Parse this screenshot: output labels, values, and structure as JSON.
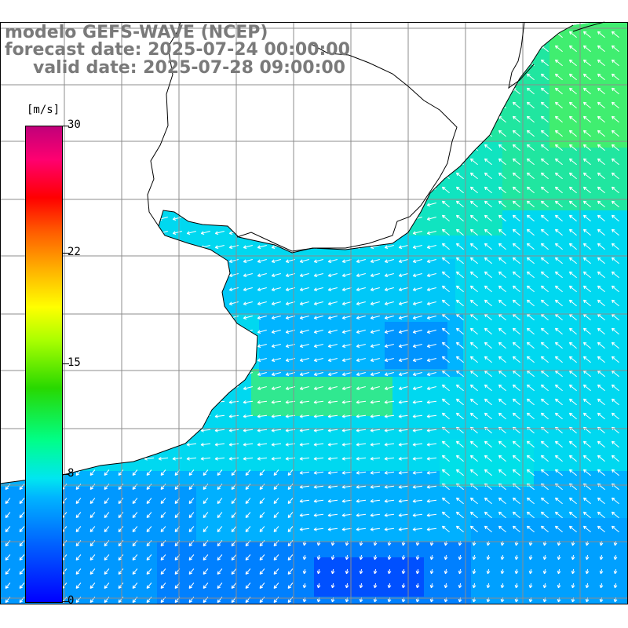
{
  "title": {
    "line1": "modelo GEFS-WAVE (NCEP)",
    "line2": "forecast date: 2025-07-24 00:00:00",
    "line3": "valid date: 2025-07-28 09:00:00"
  },
  "colorbar": {
    "unit": "[m/s]",
    "min": 0,
    "max": 30,
    "ticks": [
      {
        "label": "30",
        "value": 30
      },
      {
        "label": "22",
        "value": 22
      },
      {
        "label": "15",
        "value": 15
      },
      {
        "label": "8",
        "value": 8
      },
      {
        "label": "0",
        "value": 0
      }
    ]
  },
  "colors": {
    "land": "#ffffff",
    "coastline": "#000000",
    "grid": "#8c8c8c",
    "arrows": "#ffffff",
    "title_text": "#7a7a7a"
  }
}
